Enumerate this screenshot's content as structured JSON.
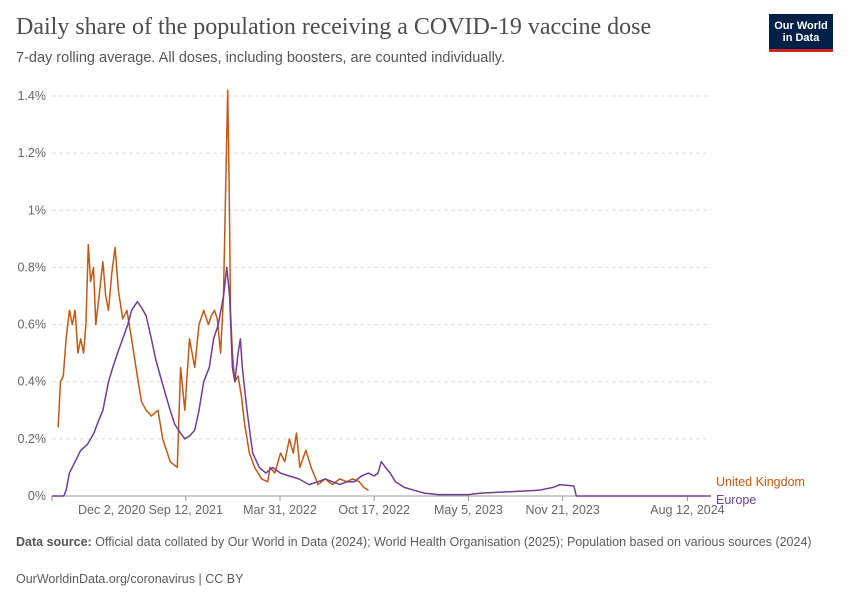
{
  "header": {
    "title": "Daily share of the population receiving a COVID-19 vaccine dose",
    "subtitle": "7-day rolling average. All doses, including boosters, are counted individually.",
    "logo_line1": "Our World",
    "logo_line2": "in Data"
  },
  "footer": {
    "source_label": "Data source:",
    "source_text": "Official data collated by Our World in Data (2024); World Health Organisation (2025); Population based on various sources (2024)",
    "link": "OurWorldinData.org/coronavirus | CC BY"
  },
  "colors": {
    "uk": "#c05917",
    "europe": "#6d3e91",
    "grid": "#dddddd",
    "axis": "#666666"
  },
  "chart_data": {
    "type": "line",
    "title": "Daily share of the population receiving a COVID-19 vaccine dose",
    "x_type": "date",
    "xlim": [
      "2020-12-02",
      "2024-10-01"
    ],
    "ylim": [
      0,
      1.4
    ],
    "y_unit": "%",
    "y_ticks": [
      "0%",
      "0.2%",
      "0.4%",
      "0.6%",
      "0.8%",
      "1%",
      "1.2%",
      "1.4%"
    ],
    "y_tick_values": [
      0,
      0.2,
      0.4,
      0.6,
      0.8,
      1.0,
      1.2,
      1.4
    ],
    "x_ticks": [
      "Dec 2, 2020",
      "Sep 12, 2021",
      "Mar 31, 2022",
      "Oct 17, 2022",
      "May 5, 2023",
      "Nov 21, 2023",
      "Aug 12, 2024"
    ],
    "x_tick_dates": [
      "2020-12-02",
      "2021-09-12",
      "2022-03-31",
      "2022-10-17",
      "2023-05-05",
      "2023-11-21",
      "2024-08-12"
    ],
    "grid": true,
    "legend": "right end labels",
    "series": [
      {
        "name": "United Kingdom",
        "color": "#c05917",
        "points": [
          [
            "2020-12-15",
            0.24
          ],
          [
            "2020-12-20",
            0.4
          ],
          [
            "2020-12-26",
            0.42
          ],
          [
            "2021-01-01",
            0.55
          ],
          [
            "2021-01-08",
            0.65
          ],
          [
            "2021-01-14",
            0.6
          ],
          [
            "2021-01-20",
            0.65
          ],
          [
            "2021-01-26",
            0.5
          ],
          [
            "2021-02-01",
            0.55
          ],
          [
            "2021-02-07",
            0.5
          ],
          [
            "2021-02-12",
            0.6
          ],
          [
            "2021-02-17",
            0.88
          ],
          [
            "2021-02-22",
            0.75
          ],
          [
            "2021-02-28",
            0.8
          ],
          [
            "2021-03-05",
            0.6
          ],
          [
            "2021-03-12",
            0.7
          ],
          [
            "2021-03-20",
            0.82
          ],
          [
            "2021-03-26",
            0.7
          ],
          [
            "2021-04-01",
            0.65
          ],
          [
            "2021-04-08",
            0.78
          ],
          [
            "2021-04-15",
            0.87
          ],
          [
            "2021-04-22",
            0.72
          ],
          [
            "2021-05-01",
            0.62
          ],
          [
            "2021-05-10",
            0.65
          ],
          [
            "2021-05-20",
            0.55
          ],
          [
            "2021-06-01",
            0.42
          ],
          [
            "2021-06-10",
            0.33
          ],
          [
            "2021-06-20",
            0.3
          ],
          [
            "2021-07-01",
            0.28
          ],
          [
            "2021-07-15",
            0.3
          ],
          [
            "2021-07-25",
            0.2
          ],
          [
            "2021-08-10",
            0.12
          ],
          [
            "2021-08-25",
            0.1
          ],
          [
            "2021-09-01",
            0.45
          ],
          [
            "2021-09-10",
            0.3
          ],
          [
            "2021-09-20",
            0.55
          ],
          [
            "2021-10-01",
            0.45
          ],
          [
            "2021-10-10",
            0.6
          ],
          [
            "2021-10-20",
            0.65
          ],
          [
            "2021-10-30",
            0.6
          ],
          [
            "2021-11-05",
            0.63
          ],
          [
            "2021-11-12",
            0.65
          ],
          [
            "2021-11-18",
            0.62
          ],
          [
            "2021-11-25",
            0.5
          ],
          [
            "2021-12-01",
            0.7
          ],
          [
            "2021-12-06",
            1.1
          ],
          [
            "2021-12-10",
            1.42
          ],
          [
            "2021-12-13",
            1.1
          ],
          [
            "2021-12-16",
            0.65
          ],
          [
            "2021-12-20",
            0.5
          ],
          [
            "2021-12-25",
            0.4
          ],
          [
            "2022-01-01",
            0.42
          ],
          [
            "2022-01-08",
            0.35
          ],
          [
            "2022-01-15",
            0.25
          ],
          [
            "2022-01-25",
            0.15
          ],
          [
            "2022-02-05",
            0.1
          ],
          [
            "2022-02-20",
            0.06
          ],
          [
            "2022-03-05",
            0.05
          ],
          [
            "2022-03-10",
            0.1
          ],
          [
            "2022-03-20",
            0.08
          ],
          [
            "2022-04-01",
            0.15
          ],
          [
            "2022-04-10",
            0.12
          ],
          [
            "2022-04-20",
            0.2
          ],
          [
            "2022-04-28",
            0.15
          ],
          [
            "2022-05-05",
            0.22
          ],
          [
            "2022-05-12",
            0.1
          ],
          [
            "2022-05-25",
            0.16
          ],
          [
            "2022-06-05",
            0.1
          ],
          [
            "2022-06-20",
            0.04
          ],
          [
            "2022-07-05",
            0.06
          ],
          [
            "2022-07-20",
            0.04
          ],
          [
            "2022-08-05",
            0.06
          ],
          [
            "2022-08-20",
            0.05
          ],
          [
            "2022-09-01",
            0.06
          ],
          [
            "2022-09-15",
            0.05
          ],
          [
            "2022-09-25",
            0.03
          ],
          [
            "2022-10-05",
            0.02
          ]
        ]
      },
      {
        "name": "Europe",
        "color": "#6d3e91",
        "points": [
          [
            "2020-12-02",
            0.0
          ],
          [
            "2020-12-27",
            0.0
          ],
          [
            "2021-01-01",
            0.02
          ],
          [
            "2021-01-08",
            0.08
          ],
          [
            "2021-01-20",
            0.12
          ],
          [
            "2021-02-01",
            0.16
          ],
          [
            "2021-02-15",
            0.18
          ],
          [
            "2021-03-01",
            0.22
          ],
          [
            "2021-03-10",
            0.26
          ],
          [
            "2021-03-20",
            0.3
          ],
          [
            "2021-04-01",
            0.4
          ],
          [
            "2021-04-10",
            0.45
          ],
          [
            "2021-04-20",
            0.5
          ],
          [
            "2021-05-01",
            0.55
          ],
          [
            "2021-05-12",
            0.6
          ],
          [
            "2021-05-20",
            0.65
          ],
          [
            "2021-06-01",
            0.68
          ],
          [
            "2021-06-10",
            0.66
          ],
          [
            "2021-06-20",
            0.63
          ],
          [
            "2021-07-01",
            0.55
          ],
          [
            "2021-07-10",
            0.48
          ],
          [
            "2021-07-20",
            0.42
          ],
          [
            "2021-08-01",
            0.35
          ],
          [
            "2021-08-10",
            0.3
          ],
          [
            "2021-08-20",
            0.25
          ],
          [
            "2021-09-01",
            0.22
          ],
          [
            "2021-09-10",
            0.2
          ],
          [
            "2021-09-20",
            0.21
          ],
          [
            "2021-10-01",
            0.23
          ],
          [
            "2021-10-10",
            0.3
          ],
          [
            "2021-10-20",
            0.4
          ],
          [
            "2021-11-01",
            0.45
          ],
          [
            "2021-11-10",
            0.55
          ],
          [
            "2021-11-20",
            0.6
          ],
          [
            "2021-12-01",
            0.7
          ],
          [
            "2021-12-08",
            0.8
          ],
          [
            "2021-12-14",
            0.7
          ],
          [
            "2021-12-20",
            0.45
          ],
          [
            "2021-12-25",
            0.4
          ],
          [
            "2022-01-01",
            0.5
          ],
          [
            "2022-01-06",
            0.55
          ],
          [
            "2022-01-10",
            0.45
          ],
          [
            "2022-01-20",
            0.3
          ],
          [
            "2022-02-01",
            0.15
          ],
          [
            "2022-02-15",
            0.1
          ],
          [
            "2022-03-01",
            0.08
          ],
          [
            "2022-03-15",
            0.1
          ],
          [
            "2022-04-01",
            0.08
          ],
          [
            "2022-04-20",
            0.07
          ],
          [
            "2022-05-10",
            0.06
          ],
          [
            "2022-06-01",
            0.04
          ],
          [
            "2022-06-20",
            0.05
          ],
          [
            "2022-07-05",
            0.06
          ],
          [
            "2022-07-20",
            0.05
          ],
          [
            "2022-08-05",
            0.04
          ],
          [
            "2022-08-20",
            0.05
          ],
          [
            "2022-09-05",
            0.05
          ],
          [
            "2022-09-20",
            0.07
          ],
          [
            "2022-10-05",
            0.08
          ],
          [
            "2022-10-17",
            0.07
          ],
          [
            "2022-10-25",
            0.08
          ],
          [
            "2022-11-01",
            0.12
          ],
          [
            "2022-11-10",
            0.1
          ],
          [
            "2022-11-20",
            0.08
          ],
          [
            "2022-12-01",
            0.05
          ],
          [
            "2022-12-20",
            0.03
          ],
          [
            "2023-01-10",
            0.02
          ],
          [
            "2023-02-01",
            0.01
          ],
          [
            "2023-03-01",
            0.005
          ],
          [
            "2023-05-05",
            0.005
          ],
          [
            "2023-06-01",
            0.01
          ],
          [
            "2023-08-01",
            0.015
          ],
          [
            "2023-10-01",
            0.02
          ],
          [
            "2023-11-01",
            0.03
          ],
          [
            "2023-11-15",
            0.04
          ],
          [
            "2023-12-15",
            0.035
          ],
          [
            "2023-12-20",
            0.0
          ],
          [
            "2024-10-01",
            0.0
          ]
        ]
      }
    ]
  }
}
